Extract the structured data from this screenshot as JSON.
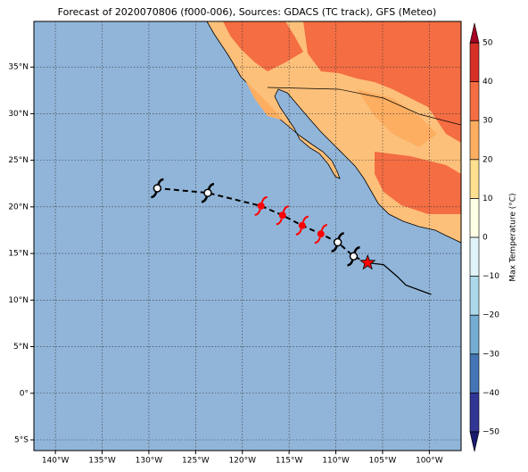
{
  "title": "Forecast of 2020070806 (f000-006), Sources: GDACS (TC track), GFS (Meteo)",
  "map": {
    "xlim": [
      -142.3,
      -96.6
    ],
    "ylim": [
      -6.15,
      39.9
    ],
    "xticks": [
      {
        "value": -140,
        "label": "140°W"
      },
      {
        "value": -135,
        "label": "135°W"
      },
      {
        "value": -130,
        "label": "130°W"
      },
      {
        "value": -125,
        "label": "125°W"
      },
      {
        "value": -120,
        "label": "120°W"
      },
      {
        "value": -115,
        "label": "115°W"
      },
      {
        "value": -110,
        "label": "110°W"
      },
      {
        "value": -105,
        "label": "105°W"
      },
      {
        "value": -100,
        "label": "100°W"
      }
    ],
    "yticks": [
      {
        "value": -5,
        "label": "5°S"
      },
      {
        "value": 0,
        "label": "0°"
      },
      {
        "value": 5,
        "label": "5°N"
      },
      {
        "value": 10,
        "label": "10°N"
      },
      {
        "value": 15,
        "label": "15°N"
      },
      {
        "value": 20,
        "label": "20°N"
      },
      {
        "value": 25,
        "label": "25°N"
      },
      {
        "value": 30,
        "label": "30°N"
      },
      {
        "value": 35,
        "label": "35°N"
      }
    ],
    "grid": true,
    "ocean_color": "#91b5d9",
    "past_track": {
      "lon": [
        -99.8,
        -102.5,
        -103.4,
        -104.9,
        -106.6
      ],
      "lat": [
        10.6,
        11.6,
        12.5,
        13.8,
        14.0
      ]
    },
    "current": {
      "lon": -106.6,
      "lat": 14.0,
      "color": "#ff0000"
    },
    "forecast": {
      "lon": [
        -108.1,
        -109.8,
        -111.6,
        -113.6,
        -115.7,
        -118.0,
        -123.7,
        -129.1
      ],
      "lat": [
        14.7,
        16.2,
        17.1,
        18.0,
        19.1,
        20.1,
        21.5,
        22.0
      ],
      "colors": [
        "#000000",
        "#000000",
        "#ff0000",
        "#ff0000",
        "#ff0000",
        "#ff0000",
        "#000000",
        "#000000"
      ]
    }
  },
  "colorbar": {
    "label": "Max Temperature (°C)",
    "clim": [
      -50,
      50
    ],
    "ticks": [
      {
        "value": -50,
        "label": "−50"
      },
      {
        "value": -40,
        "label": "−40"
      },
      {
        "value": -30,
        "label": "−30"
      },
      {
        "value": -20,
        "label": "−20"
      },
      {
        "value": -10,
        "label": "−10"
      },
      0,
      10,
      20,
      30,
      40,
      50
    ],
    "colors": [
      "#313695",
      "#4575b4",
      "#74add1",
      "#abd9e9",
      "#e0f3f8",
      "#ffffe5",
      "#fee090",
      "#fdae61",
      "#f46d43",
      "#d73027"
    ],
    "under": "#1a1a6e",
    "over": "#a50026"
  }
}
